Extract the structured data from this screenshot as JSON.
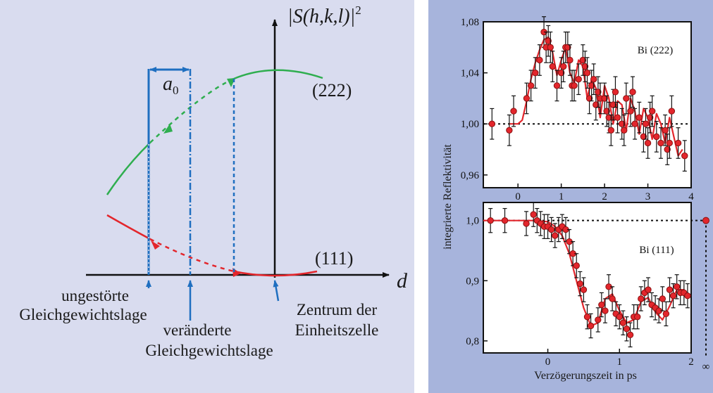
{
  "left_diagram": {
    "y_axis_label": "|S(h,k,l)|",
    "y_axis_exponent": "2",
    "x_axis_label": "d",
    "displacement_label": "a",
    "displacement_subscript": "0",
    "curve_222_label": "(222)",
    "curve_111_label": "(111)",
    "label_undisturbed_line1": "ungestörte",
    "label_undisturbed_line2": "Gleichgewichtslage",
    "label_changed_line1": "veränderte",
    "label_changed_line2": "Gleichgewichtslage",
    "label_center_line1": "Zentrum der",
    "label_center_line2": "Einheitszelle",
    "colors": {
      "green": "#2fae4f",
      "red": "#e3262c",
      "blue": "#1f6fc0",
      "axis": "#111111"
    }
  },
  "chart_data": [
    {
      "type": "scatter",
      "annotation": "Bi (222)",
      "ylabel": "integrierte Reflektivität",
      "xlim": [
        -0.8,
        4.0
      ],
      "ylim": [
        0.95,
        1.08
      ],
      "xticks": [
        "0",
        "1",
        "2",
        "3",
        "4"
      ],
      "yticks": [
        "1,08",
        "1,04",
        "1,00",
        "0,96"
      ],
      "baseline": 1.0,
      "x": [
        -0.6,
        -0.2,
        -0.1,
        0.2,
        0.3,
        0.4,
        0.5,
        0.6,
        0.65,
        0.7,
        0.75,
        0.8,
        0.9,
        1.0,
        1.05,
        1.1,
        1.15,
        1.2,
        1.25,
        1.3,
        1.4,
        1.5,
        1.55,
        1.6,
        1.65,
        1.7,
        1.75,
        1.8,
        1.85,
        1.9,
        2.0,
        2.05,
        2.1,
        2.15,
        2.2,
        2.25,
        2.3,
        2.4,
        2.45,
        2.5,
        2.6,
        2.65,
        2.7,
        2.8,
        2.9,
        2.95,
        3.0,
        3.05,
        3.1,
        3.2,
        3.3,
        3.4,
        3.45,
        3.5,
        3.55,
        3.7,
        3.85
      ],
      "y": [
        1.0,
        0.995,
        1.01,
        1.02,
        1.03,
        1.04,
        1.05,
        1.072,
        1.06,
        1.065,
        1.06,
        1.045,
        1.03,
        1.04,
        1.045,
        1.06,
        1.06,
        1.05,
        1.03,
        1.03,
        1.035,
        1.05,
        1.045,
        1.04,
        1.02,
        1.03,
        1.035,
        1.015,
        1.025,
        1.02,
        1.02,
        1.01,
        1.005,
        0.995,
        1.015,
        1.025,
        1.005,
        1.0,
        0.995,
        1.02,
        1.01,
        1.025,
        1.0,
        1.005,
        0.99,
        1.0,
        0.985,
        1.005,
        1.01,
        0.99,
        0.985,
        0.995,
        0.98,
        0.985,
        1.01,
        0.985,
        0.975
      ],
      "fit_x": [
        -0.2,
        0.0,
        0.1,
        0.2,
        0.3,
        0.4,
        0.5,
        0.6,
        0.7,
        0.8,
        0.9,
        1.0,
        1.1,
        1.2,
        1.3,
        1.4,
        1.5,
        1.6,
        1.7,
        1.8,
        1.9,
        2.0,
        2.1,
        2.2,
        2.3,
        2.4,
        2.5,
        2.6,
        2.7,
        2.8,
        2.9,
        3.0,
        3.1,
        3.2,
        3.3,
        3.4,
        3.5,
        3.6,
        3.7,
        3.8
      ],
      "fit_y": [
        1.0,
        1.0,
        1.003,
        1.018,
        1.035,
        1.048,
        1.058,
        1.066,
        1.068,
        1.056,
        1.038,
        1.05,
        1.06,
        1.04,
        1.032,
        1.05,
        1.045,
        1.02,
        1.035,
        1.028,
        1.005,
        1.03,
        1.02,
        1.0,
        1.018,
        1.015,
        0.995,
        1.02,
        1.01,
        0.992,
        1.012,
        1.005,
        0.988,
        1.008,
        1.0,
        0.985,
        1.005,
        0.99,
        0.975,
        0.98
      ]
    },
    {
      "type": "scatter",
      "annotation": "Bi (111)",
      "xlabel": "Verzögerungszeit in ps",
      "xlim": [
        -0.9,
        2.0
      ],
      "ylim": [
        0.78,
        1.03
      ],
      "xticks": [
        "0",
        "1",
        "2"
      ],
      "yticks": [
        "1,0",
        "0,9",
        "0,8"
      ],
      "baseline": 1.0,
      "infinity_label": "∞",
      "infinity_value": 1.0,
      "x": [
        -0.8,
        -0.6,
        -0.3,
        -0.2,
        -0.15,
        -0.1,
        -0.05,
        0.0,
        0.05,
        0.1,
        0.15,
        0.2,
        0.25,
        0.3,
        0.35,
        0.4,
        0.45,
        0.5,
        0.55,
        0.6,
        0.7,
        0.75,
        0.8,
        0.85,
        0.9,
        0.95,
        1.0,
        1.05,
        1.1,
        1.15,
        1.2,
        1.25,
        1.3,
        1.35,
        1.4,
        1.45,
        1.5,
        1.55,
        1.6,
        1.65,
        1.7,
        1.75,
        1.8,
        1.85,
        1.9,
        1.95
      ],
      "y": [
        1.0,
        1.0,
        0.995,
        1.01,
        1.0,
        0.995,
        0.99,
        0.99,
        0.985,
        0.975,
        0.985,
        0.99,
        0.985,
        0.965,
        0.945,
        0.925,
        0.895,
        0.885,
        0.84,
        0.825,
        0.835,
        0.86,
        0.85,
        0.89,
        0.87,
        0.845,
        0.84,
        0.83,
        0.82,
        0.81,
        0.84,
        0.84,
        0.87,
        0.88,
        0.885,
        0.86,
        0.855,
        0.85,
        0.87,
        0.845,
        0.885,
        0.875,
        0.89,
        0.88,
        0.88,
        0.875
      ],
      "fit_x": [
        -0.9,
        -0.2,
        0.0,
        0.1,
        0.2,
        0.3,
        0.4,
        0.5,
        0.6,
        0.7,
        0.8,
        0.9,
        1.0,
        1.1,
        1.2,
        1.3,
        1.4,
        1.5,
        1.6,
        1.7,
        1.8,
        1.9,
        1.95
      ],
      "fit_y": [
        1.0,
        1.0,
        0.998,
        0.99,
        0.975,
        0.945,
        0.9,
        0.855,
        0.825,
        0.83,
        0.87,
        0.878,
        0.85,
        0.83,
        0.835,
        0.865,
        0.872,
        0.848,
        0.835,
        0.858,
        0.885,
        0.885,
        0.875
      ]
    }
  ]
}
